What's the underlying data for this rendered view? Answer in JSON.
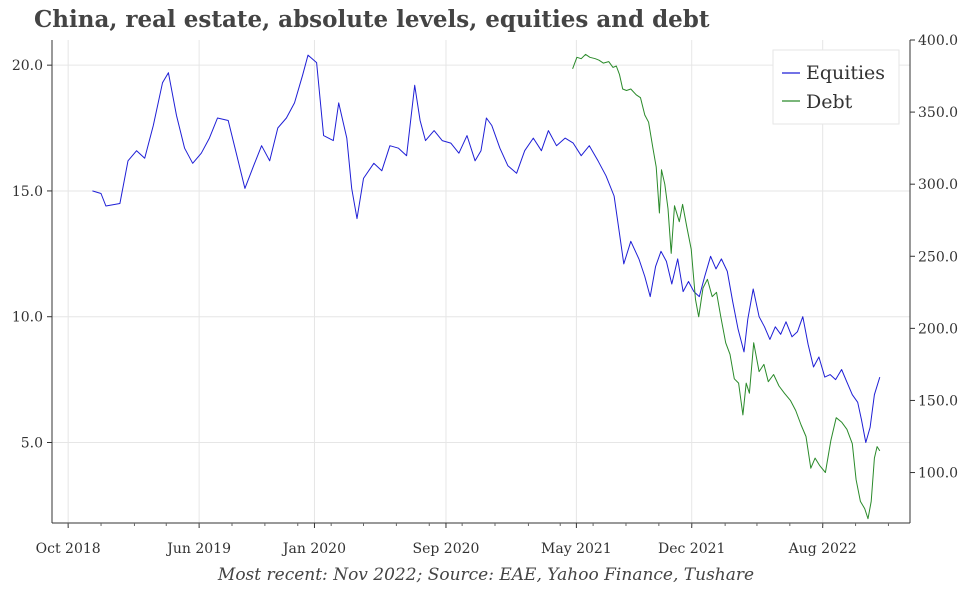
{
  "chart_data": {
    "type": "line",
    "title": "China, real estate, absolute levels, equities and debt",
    "caption": "Most recent: Nov 2022; Source: EAE, Yahoo Finance, Tushare",
    "x_ticks": [
      "Oct 2018",
      "Jun 2019",
      "Jan 2020",
      "Sep 2020",
      "May 2021",
      "Dec 2021",
      "Aug 2022"
    ],
    "x_tick_dates": [
      "2018-10-01",
      "2019-06-01",
      "2020-01-01",
      "2020-09-01",
      "2021-05-01",
      "2021-12-01",
      "2022-08-01"
    ],
    "xlim": [
      "2018-09-01",
      "2023-01-10"
    ],
    "left_axis": {
      "ticks": [
        "5.0",
        "10.0",
        "15.0",
        "20.0"
      ],
      "tick_values": [
        5,
        10,
        15,
        20
      ],
      "ylim": [
        1.8,
        21.0
      ]
    },
    "right_axis": {
      "ticks": [
        "100.0",
        "150.0",
        "200.0",
        "250.0",
        "300.0",
        "350.0",
        "400.0"
      ],
      "tick_values": [
        100,
        150,
        200,
        250,
        300,
        350,
        400
      ],
      "ylim": [
        65,
        400
      ]
    },
    "grid": true,
    "legend_position": "top-right",
    "series": [
      {
        "name": "Equities",
        "axis": "left",
        "color": "#1f1fd6",
        "points": [
          [
            "2018-11-15",
            15.0
          ],
          [
            "2018-12-01",
            14.9
          ],
          [
            "2018-12-10",
            14.4
          ],
          [
            "2019-01-05",
            14.5
          ],
          [
            "2019-01-20",
            16.2
          ],
          [
            "2019-02-05",
            16.6
          ],
          [
            "2019-02-20",
            16.3
          ],
          [
            "2019-03-08",
            17.6
          ],
          [
            "2019-03-25",
            19.3
          ],
          [
            "2019-04-05",
            19.7
          ],
          [
            "2019-04-20",
            18.0
          ],
          [
            "2019-05-05",
            16.7
          ],
          [
            "2019-05-20",
            16.1
          ],
          [
            "2019-06-05",
            16.5
          ],
          [
            "2019-06-20",
            17.1
          ],
          [
            "2019-07-05",
            17.9
          ],
          [
            "2019-07-25",
            17.8
          ],
          [
            "2019-08-10",
            16.4
          ],
          [
            "2019-08-25",
            15.1
          ],
          [
            "2019-09-10",
            16.0
          ],
          [
            "2019-09-25",
            16.8
          ],
          [
            "2019-10-10",
            16.2
          ],
          [
            "2019-10-25",
            17.5
          ],
          [
            "2019-11-10",
            17.9
          ],
          [
            "2019-11-25",
            18.5
          ],
          [
            "2019-12-10",
            19.6
          ],
          [
            "2019-12-20",
            20.4
          ],
          [
            "2020-01-05",
            20.1
          ],
          [
            "2020-01-18",
            17.2
          ],
          [
            "2020-02-05",
            17.0
          ],
          [
            "2020-02-15",
            18.5
          ],
          [
            "2020-03-01",
            17.1
          ],
          [
            "2020-03-10",
            15.1
          ],
          [
            "2020-03-20",
            13.9
          ],
          [
            "2020-04-01",
            15.5
          ],
          [
            "2020-04-20",
            16.1
          ],
          [
            "2020-05-05",
            15.8
          ],
          [
            "2020-05-20",
            16.8
          ],
          [
            "2020-06-05",
            16.7
          ],
          [
            "2020-06-20",
            16.4
          ],
          [
            "2020-07-05",
            19.2
          ],
          [
            "2020-07-15",
            17.8
          ],
          [
            "2020-07-25",
            17.0
          ],
          [
            "2020-08-10",
            17.4
          ],
          [
            "2020-08-25",
            17.0
          ],
          [
            "2020-09-10",
            16.9
          ],
          [
            "2020-09-25",
            16.5
          ],
          [
            "2020-10-10",
            17.2
          ],
          [
            "2020-10-25",
            16.2
          ],
          [
            "2020-11-05",
            16.6
          ],
          [
            "2020-11-15",
            17.9
          ],
          [
            "2020-11-25",
            17.6
          ],
          [
            "2020-12-10",
            16.7
          ],
          [
            "2020-12-25",
            16.0
          ],
          [
            "2021-01-10",
            15.7
          ],
          [
            "2021-01-25",
            16.6
          ],
          [
            "2021-02-10",
            17.1
          ],
          [
            "2021-02-25",
            16.6
          ],
          [
            "2021-03-10",
            17.4
          ],
          [
            "2021-03-25",
            16.8
          ],
          [
            "2021-04-10",
            17.1
          ],
          [
            "2021-04-25",
            16.9
          ],
          [
            "2021-05-10",
            16.4
          ],
          [
            "2021-05-25",
            16.8
          ],
          [
            "2021-06-10",
            16.2
          ],
          [
            "2021-06-25",
            15.6
          ],
          [
            "2021-07-10",
            14.8
          ],
          [
            "2021-07-20",
            13.3
          ],
          [
            "2021-07-28",
            12.1
          ],
          [
            "2021-08-10",
            13.0
          ],
          [
            "2021-08-25",
            12.3
          ],
          [
            "2021-09-05",
            11.6
          ],
          [
            "2021-09-15",
            10.8
          ],
          [
            "2021-09-25",
            12.0
          ],
          [
            "2021-10-05",
            12.6
          ],
          [
            "2021-10-15",
            12.2
          ],
          [
            "2021-10-25",
            11.3
          ],
          [
            "2021-11-05",
            12.3
          ],
          [
            "2021-11-15",
            11.0
          ],
          [
            "2021-11-25",
            11.4
          ],
          [
            "2021-12-05",
            11.0
          ],
          [
            "2021-12-15",
            10.8
          ],
          [
            "2021-12-25",
            11.6
          ],
          [
            "2022-01-05",
            12.4
          ],
          [
            "2022-01-15",
            11.9
          ],
          [
            "2022-01-25",
            12.3
          ],
          [
            "2022-02-05",
            11.8
          ],
          [
            "2022-02-15",
            10.6
          ],
          [
            "2022-02-25",
            9.5
          ],
          [
            "2022-03-08",
            8.6
          ],
          [
            "2022-03-15",
            9.9
          ],
          [
            "2022-03-25",
            11.1
          ],
          [
            "2022-04-05",
            10.0
          ],
          [
            "2022-04-15",
            9.6
          ],
          [
            "2022-04-25",
            9.1
          ],
          [
            "2022-05-05",
            9.6
          ],
          [
            "2022-05-15",
            9.3
          ],
          [
            "2022-05-25",
            9.8
          ],
          [
            "2022-06-05",
            9.2
          ],
          [
            "2022-06-15",
            9.4
          ],
          [
            "2022-06-25",
            10.0
          ],
          [
            "2022-07-05",
            8.9
          ],
          [
            "2022-07-15",
            8.0
          ],
          [
            "2022-07-25",
            8.4
          ],
          [
            "2022-08-05",
            7.6
          ],
          [
            "2022-08-15",
            7.7
          ],
          [
            "2022-08-25",
            7.5
          ],
          [
            "2022-09-05",
            7.9
          ],
          [
            "2022-09-15",
            7.4
          ],
          [
            "2022-09-25",
            6.9
          ],
          [
            "2022-10-05",
            6.6
          ],
          [
            "2022-10-12",
            5.9
          ],
          [
            "2022-10-20",
            5.0
          ],
          [
            "2022-10-28",
            5.6
          ],
          [
            "2022-11-05",
            6.9
          ],
          [
            "2022-11-15",
            7.6
          ]
        ]
      },
      {
        "name": "Debt",
        "axis": "right",
        "color": "#2a8a2a",
        "points": [
          [
            "2021-04-24",
            380
          ],
          [
            "2021-05-02",
            388
          ],
          [
            "2021-05-10",
            387
          ],
          [
            "2021-05-18",
            390
          ],
          [
            "2021-05-26",
            388
          ],
          [
            "2021-06-05",
            387
          ],
          [
            "2021-06-12",
            386
          ],
          [
            "2021-06-20",
            384
          ],
          [
            "2021-06-30",
            385
          ],
          [
            "2021-07-08",
            381
          ],
          [
            "2021-07-14",
            382
          ],
          [
            "2021-07-20",
            376
          ],
          [
            "2021-07-26",
            366
          ],
          [
            "2021-08-02",
            365
          ],
          [
            "2021-08-10",
            366
          ],
          [
            "2021-08-20",
            362
          ],
          [
            "2021-08-28",
            360
          ],
          [
            "2021-09-05",
            348
          ],
          [
            "2021-09-12",
            343
          ],
          [
            "2021-09-20",
            325
          ],
          [
            "2021-09-26",
            312
          ],
          [
            "2021-10-02",
            280
          ],
          [
            "2021-10-06",
            310
          ],
          [
            "2021-10-12",
            300
          ],
          [
            "2021-10-18",
            283
          ],
          [
            "2021-10-24",
            252
          ],
          [
            "2021-10-30",
            285
          ],
          [
            "2021-11-08",
            274
          ],
          [
            "2021-11-14",
            286
          ],
          [
            "2021-11-22",
            270
          ],
          [
            "2021-11-30",
            255
          ],
          [
            "2021-12-08",
            220
          ],
          [
            "2021-12-14",
            208
          ],
          [
            "2021-12-22",
            228
          ],
          [
            "2021-12-30",
            234
          ],
          [
            "2022-01-08",
            222
          ],
          [
            "2022-01-16",
            225
          ],
          [
            "2022-01-24",
            208
          ],
          [
            "2022-02-02",
            190
          ],
          [
            "2022-02-10",
            182
          ],
          [
            "2022-02-18",
            165
          ],
          [
            "2022-02-26",
            162
          ],
          [
            "2022-03-06",
            140
          ],
          [
            "2022-03-12",
            162
          ],
          [
            "2022-03-18",
            155
          ],
          [
            "2022-03-26",
            190
          ],
          [
            "2022-04-05",
            170
          ],
          [
            "2022-04-14",
            175
          ],
          [
            "2022-04-22",
            163
          ],
          [
            "2022-05-02",
            168
          ],
          [
            "2022-05-12",
            160
          ],
          [
            "2022-05-22",
            155
          ],
          [
            "2022-06-02",
            150
          ],
          [
            "2022-06-12",
            143
          ],
          [
            "2022-06-22",
            133
          ],
          [
            "2022-07-01",
            125
          ],
          [
            "2022-07-10",
            103
          ],
          [
            "2022-07-18",
            110
          ],
          [
            "2022-07-26",
            105
          ],
          [
            "2022-08-06",
            100
          ],
          [
            "2022-08-16",
            122
          ],
          [
            "2022-08-26",
            138
          ],
          [
            "2022-09-05",
            135
          ],
          [
            "2022-09-15",
            130
          ],
          [
            "2022-09-25",
            120
          ],
          [
            "2022-10-02",
            95
          ],
          [
            "2022-10-10",
            80
          ],
          [
            "2022-10-18",
            75
          ],
          [
            "2022-10-24",
            68
          ],
          [
            "2022-10-30",
            80
          ],
          [
            "2022-11-05",
            110
          ],
          [
            "2022-11-10",
            118
          ],
          [
            "2022-11-15",
            115
          ]
        ]
      }
    ]
  }
}
